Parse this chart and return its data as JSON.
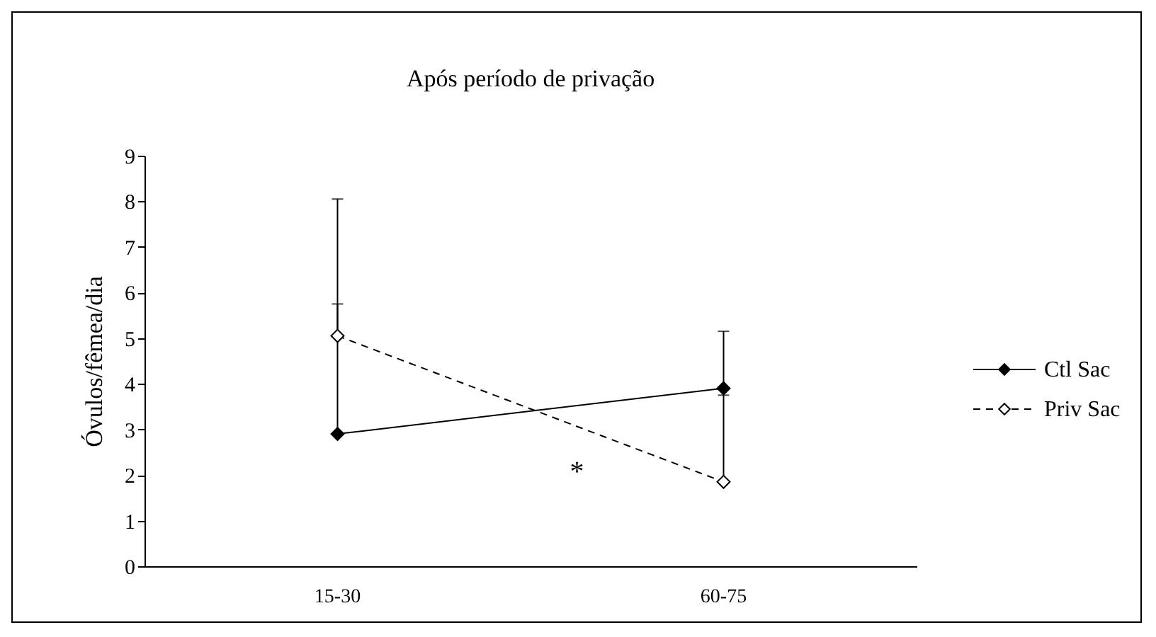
{
  "chart_data": {
    "type": "line",
    "title": "Após período de privação",
    "ylabel": "Óvulos/fêmea/dia",
    "categories": [
      "15-30",
      "60-75"
    ],
    "series": [
      {
        "name": "Ctl Sac",
        "color": "#000000",
        "line_style": "solid",
        "values": [
          2.9,
          3.9
        ],
        "errors": [
          [
            2.9,
            5.75
          ],
          [
            3.9,
            5.15
          ]
        ]
      },
      {
        "name": "Priv Sac",
        "color": "#000000",
        "line_style": "dashed",
        "values": [
          5.05,
          1.85
        ],
        "errors": [
          [
            5.05,
            8.05
          ],
          [
            1.85,
            3.75
          ]
        ]
      }
    ],
    "ylim": [
      0,
      9
    ],
    "yticks": [
      0,
      1,
      2,
      3,
      4,
      5,
      6,
      7,
      8,
      9
    ],
    "grid": false,
    "legend": "right",
    "marker": "diamond",
    "annotations": [
      "*"
    ]
  }
}
